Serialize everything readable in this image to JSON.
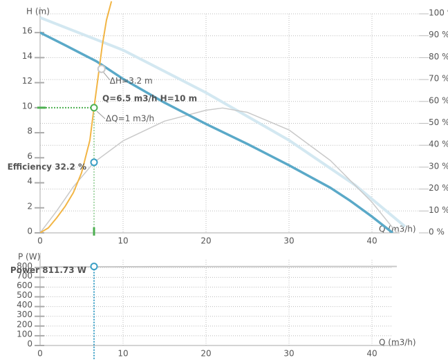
{
  "chart_data": [
    {
      "type": "line",
      "y_label": "H (m)",
      "x_label": "Q (m3/h)",
      "xlim": [
        0,
        45
      ],
      "xticks": [
        0,
        10,
        20,
        30,
        40
      ],
      "ylim": [
        0,
        17.5
      ],
      "yticks": [
        0,
        2,
        4,
        6,
        8,
        10,
        12,
        14,
        16
      ],
      "y2lim": [
        0,
        100
      ],
      "y2ticks": [
        {
          "value": 0,
          "label": "0 %"
        },
        {
          "value": 10,
          "label": "10 %"
        },
        {
          "value": 20,
          "label": "20 %"
        },
        {
          "value": 30,
          "label": "30 %"
        },
        {
          "value": 40,
          "label": "40 %"
        },
        {
          "value": 50,
          "label": "50 %"
        },
        {
          "value": 60,
          "label": "60 %"
        },
        {
          "value": 70,
          "label": "70 %"
        },
        {
          "value": 80,
          "label": "80 %"
        },
        {
          "value": 90,
          "label": "90 %"
        },
        {
          "value": 100,
          "label": "100 %"
        }
      ],
      "grid": true,
      "series": [
        {
          "color": "#d3e8f1",
          "width": 4,
          "x": [
            0,
            10,
            20,
            30,
            38,
            44
          ],
          "values": [
            17.2,
            14.6,
            11.2,
            7.4,
            3.8,
            0.5
          ]
        },
        {
          "color": "#c9c9c9",
          "width": 1.5,
          "axis": "y2",
          "x": [
            0,
            2,
            4,
            6.5,
            10,
            15,
            20,
            22,
            25,
            30,
            35,
            40,
            43
          ],
          "values": [
            0,
            10,
            21,
            32.2,
            42,
            51,
            56,
            57,
            55,
            47,
            33,
            14,
            0
          ]
        },
        {
          "color": "#5aa9c8",
          "width": 3.5,
          "x": [
            0,
            3,
            6.8,
            10,
            15,
            20,
            25,
            30,
            35,
            37.3,
            40,
            42.5
          ],
          "values": [
            16.0,
            15.0,
            13.7,
            12.3,
            10.4,
            8.7,
            7.1,
            5.4,
            3.6,
            2.6,
            1.3,
            0
          ]
        },
        {
          "color": "#f2b544",
          "width": 2,
          "x": [
            0,
            1,
            2,
            3,
            4,
            5,
            6,
            6.5,
            7,
            7.5,
            8,
            8.6
          ],
          "values": [
            0,
            0.4,
            1.2,
            2.1,
            3.2,
            4.8,
            7.4,
            10,
            12.5,
            15,
            17,
            18.5
          ]
        }
      ],
      "operating_point": {
        "x": 6.5,
        "y": 10,
        "label": "Q=6.5 m3/h H=10 m",
        "color": "#4caf50"
      },
      "delta_point": {
        "x": 7.4,
        "y": 13.1,
        "label": "ΔH=3.2 m"
      },
      "delta_q_label": "ΔQ=1 m3/h",
      "efficiency_point": {
        "x": 6.5,
        "value": 32.2,
        "label": "Efficiency 32.2 %",
        "color": "#3a9fc5"
      }
    },
    {
      "type": "line",
      "y_label": "P (W)",
      "x_label": "Q (m3/h)",
      "xlim": [
        0,
        45
      ],
      "xticks": [
        0,
        10,
        20,
        30,
        40
      ],
      "ylim": [
        0,
        880
      ],
      "yticks": [
        0,
        100,
        200,
        300,
        400,
        500,
        600,
        700,
        800
      ],
      "grid": true,
      "series": [
        {
          "color": "#c9c9c9",
          "width": 2,
          "x": [
            0,
            43
          ],
          "values": [
            808,
            812
          ]
        }
      ],
      "power_point": {
        "x": 6.5,
        "value": 811.73,
        "label": "Power 811.73 W",
        "color": "#3a9fc5"
      }
    }
  ]
}
